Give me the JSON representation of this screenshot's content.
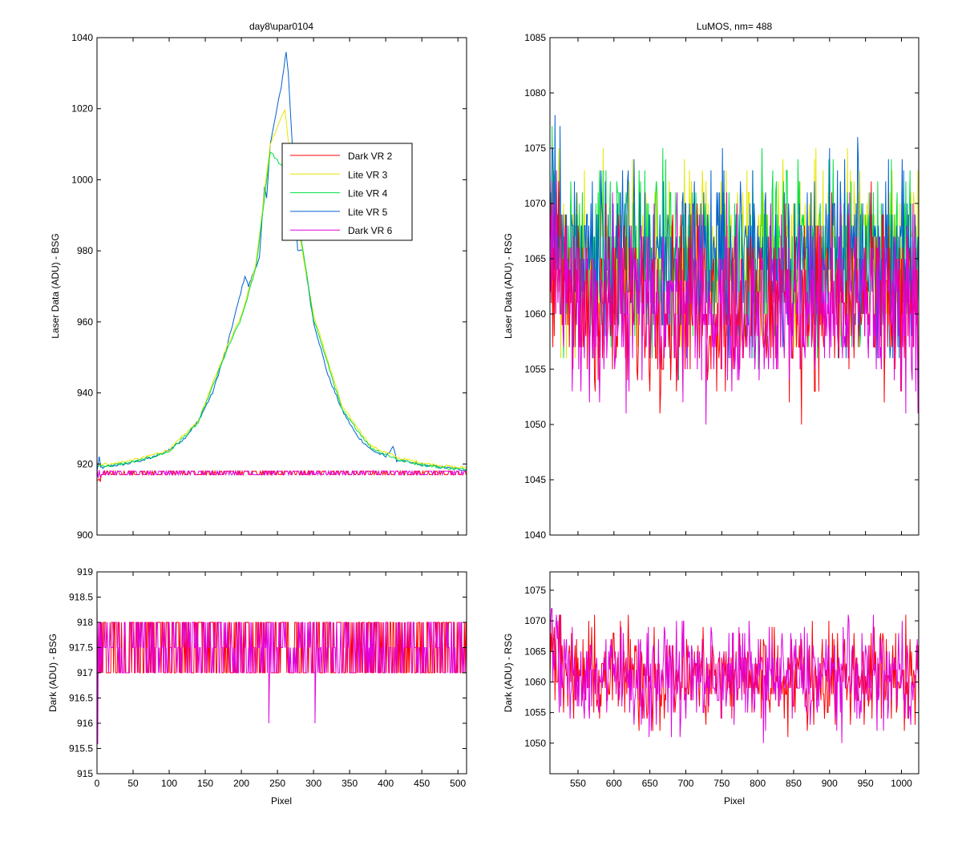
{
  "figure": {
    "top_left_title": "day8\\upar0104",
    "top_right_title": "LuMOS, nm= 488"
  },
  "chart_data": [
    {
      "id": "top-left",
      "type": "line",
      "title": "day8\\upar0104",
      "xlabel": "",
      "ylabel": "Laser Data (ADU) - BSG",
      "xlim": [
        0,
        512
      ],
      "ylim": [
        900,
        1040
      ],
      "yticks": [
        900,
        920,
        940,
        960,
        980,
        1000,
        1020,
        1040
      ],
      "xticks": [
        0,
        50,
        100,
        150,
        200,
        250,
        300,
        350,
        400,
        450,
        500
      ],
      "show_xtick_labels": false,
      "legend": {
        "placement": "upper-center",
        "entries": [
          {
            "name": "Dark VR 2",
            "color": "#ff0000"
          },
          {
            "name": "Lite VR 3",
            "color": "#e6e600"
          },
          {
            "name": "Lite VR 4",
            "color": "#00e040"
          },
          {
            "name": "Lite VR 5",
            "color": "#0060d0"
          },
          {
            "name": "Dark VR 6",
            "color": "#e000e0"
          }
        ]
      },
      "series": [
        {
          "name": "Lite VR 5",
          "color": "#0060d0",
          "x": [
            0,
            3,
            5,
            10,
            20,
            40,
            60,
            80,
            100,
            120,
            140,
            160,
            180,
            195,
            205,
            210,
            215,
            225,
            232,
            235,
            240,
            255,
            262,
            265,
            270,
            275,
            278,
            285,
            300,
            320,
            340,
            360,
            380,
            400,
            410,
            415,
            420,
            440,
            460,
            480,
            500,
            512
          ],
          "y": [
            918,
            922,
            919,
            919,
            919.5,
            920,
            921,
            922,
            924,
            927,
            932,
            940,
            953,
            965,
            973,
            970,
            973,
            978,
            998,
            995,
            1010,
            1026,
            1036,
            1030,
            1012,
            990,
            980,
            980,
            960,
            945,
            935,
            928,
            924,
            922,
            925,
            921,
            921,
            920,
            919.5,
            919,
            918.5,
            918.5
          ]
        },
        {
          "name": "Lite VR 3",
          "color": "#e6e600",
          "x": [
            2,
            20,
            60,
            100,
            140,
            180,
            200,
            220,
            240,
            260,
            280,
            300,
            340,
            380,
            420,
            460,
            500,
            512
          ],
          "y": [
            920,
            920,
            921.5,
            924,
            932,
            953,
            962,
            976,
            1010,
            1020,
            985,
            962,
            936,
            925,
            921.5,
            920,
            919,
            919
          ]
        },
        {
          "name": "Lite VR 4",
          "color": "#00e040",
          "x": [
            2,
            20,
            60,
            100,
            140,
            180,
            200,
            220,
            240,
            270,
            300,
            340,
            380,
            420,
            460,
            500,
            512
          ],
          "y": [
            919.5,
            919.5,
            921,
            923.5,
            931.5,
            952,
            961,
            975,
            1008,
            1000,
            961,
            935,
            924.5,
            921,
            919.5,
            918.5,
            918.5
          ]
        },
        {
          "name": "Dark VR 2",
          "color": "#ff0000",
          "x": [
            0,
            512
          ],
          "y": [
            917.5,
            917.5
          ]
        },
        {
          "name": "Dark VR 6",
          "color": "#e000e0",
          "x": [
            0,
            512
          ],
          "y": [
            917.5,
            917.5
          ]
        }
      ]
    },
    {
      "id": "top-right",
      "type": "line",
      "title": "LuMOS, nm= 488",
      "xlabel": "",
      "ylabel": "Laser Data (ADU) - RSG",
      "xlim": [
        511,
        1024
      ],
      "ylim": [
        1040,
        1085
      ],
      "yticks": [
        1040,
        1045,
        1050,
        1055,
        1060,
        1065,
        1070,
        1075,
        1080,
        1085
      ],
      "xticks": [
        550,
        600,
        650,
        700,
        750,
        800,
        850,
        900,
        950,
        1000
      ],
      "show_xtick_labels": false,
      "series": [
        {
          "name": "Lite VR 3",
          "color": "#e6e600",
          "mean": 1065,
          "min": 1051,
          "max": 1080
        },
        {
          "name": "Lite VR 4",
          "color": "#00e040",
          "mean": 1065,
          "min": 1052,
          "max": 1079
        },
        {
          "name": "Lite VR 5",
          "color": "#0060d0",
          "mean": 1065,
          "min": 1052,
          "max": 1078
        },
        {
          "name": "Dark VR 2",
          "color": "#ff0000",
          "mean": 1061,
          "min": 1049,
          "max": 1077
        },
        {
          "name": "Dark VR 6",
          "color": "#e000e0",
          "mean": 1061,
          "min": 1047,
          "max": 1075
        }
      ]
    },
    {
      "id": "bottom-left",
      "type": "line",
      "title": "",
      "xlabel": "Pixel",
      "ylabel": "Dark (ADU) - BSG",
      "xlim": [
        0,
        512
      ],
      "ylim": [
        915,
        919
      ],
      "yticks": [
        915,
        915.5,
        916,
        916.5,
        917,
        917.5,
        918,
        918.5,
        919
      ],
      "xticks": [
        0,
        50,
        100,
        150,
        200,
        250,
        300,
        350,
        400,
        450,
        500
      ],
      "show_xtick_labels": true,
      "series": [
        {
          "name": "Dark VR 2",
          "color": "#ff0000",
          "levels": [
            917,
            918
          ]
        },
        {
          "name": "Dark VR 6",
          "color": "#e000e0",
          "levels": [
            917,
            917.5,
            918
          ],
          "dips": [
            {
              "x": 238,
              "y": 916
            },
            {
              "x": 302,
              "y": 916
            }
          ]
        }
      ]
    },
    {
      "id": "bottom-right",
      "type": "line",
      "title": "",
      "xlabel": "Pixel",
      "ylabel": "Dark (ADU) - RSG",
      "xlim": [
        511,
        1024
      ],
      "ylim": [
        1045,
        1078
      ],
      "yticks": [
        1050,
        1055,
        1060,
        1065,
        1070,
        1075
      ],
      "xticks": [
        550,
        600,
        650,
        700,
        750,
        800,
        850,
        900,
        950,
        1000
      ],
      "show_xtick_labels": true,
      "series": [
        {
          "name": "Dark VR 2",
          "color": "#ff0000",
          "mean": 1061,
          "min": 1049,
          "max": 1077
        },
        {
          "name": "Dark VR 6",
          "color": "#e000e0",
          "mean": 1061,
          "min": 1047,
          "max": 1076
        }
      ]
    }
  ]
}
